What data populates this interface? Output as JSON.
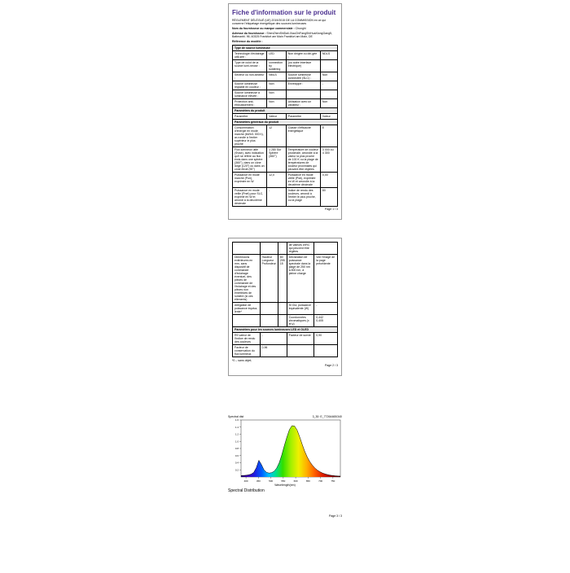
{
  "title": "Fiche d'information sur le produit",
  "subtitle": "RÈGLEMENT DÉLÉGUÉ (UE) 2019/2015 DE LA COMMISSION en ce qui concerne l'étiquetage énergétique des sources lumineuses",
  "supplierLabel": "Nom du fournisseur ou marque commerciale :",
  "supplier": "Chunghi",
  "addressLabel": "Adresse du fournisseur :",
  "address": "ShenZhenShiDali-XiaoChiFangShiHuaXiongGang5, Battmanbl. 96, 60325 Frankfurt am Main Frankfurt am Main, DE",
  "refLabel": "Référence du modèle :",
  "ref": "",
  "sectType": "Type de source lumineuse",
  "rows1": [
    [
      "Technologie d'éclairage utili-sée :",
      "LED",
      "Non dirigée ou diri-gée :",
      "NDLS"
    ],
    [
      "Type de culot de la source lumi-neuse :",
      "connection by soldering",
      "(ou autre interface électrique)",
      ""
    ],
    [
      "Secteur ou non-secteur :",
      "NMLS",
      "Source lumineuse connectée (SLC) :",
      "Non"
    ],
    [
      "Source lumineuse réglable en couleur :",
      "Non",
      "Enveloppe :",
      "-"
    ],
    [
      "Source lumineuse à luminance élevée :",
      "Non",
      "",
      ""
    ],
    [
      "Protection anti-éblouissement :",
      "Non",
      "Utilisation avec un variateur :",
      "Non"
    ]
  ],
  "sectParam": "Paramètres du produit",
  "hdr": [
    "Paramètre",
    "Valeur",
    "Paramètre",
    "Valeur"
  ],
  "sectGen": "Paramètres généraux du produit",
  "rows2": [
    [
      "Consommation d'énergie en mode marche (kWh/1 000 h), ar-rondie à l'entier supérieur le plus proche",
      "12",
      "Classe d'efficacité énergétique",
      "E"
    ],
    [
      "Flux lumineux utile (Φuse), avec indication qu'il se réfère au flux émis dans une sphère (360°), dans un cône large (120°) ou dans un cône étroit (90°)",
      "1 280 Sur Sphère (360°)",
      "Température de couleur proximale, arrondie à la valeur la plus proche de 100 K ou la plage de températures de couleur proximales qui peuvent être réglées",
      "3 000 ou 4 300"
    ],
    [
      "Puissance en mode marche (Pon), exprimée en W",
      "12,0",
      "Puissance en mode veille (Psb), exprimée en W et arrondie à la deuxième décimale",
      "0,00"
    ],
    [
      "Puissance en mode veille (Pnet) pour SLC, exprimé en W et arrondi à la deuxième décimale",
      "-",
      "Indice de rendu des couleurs, arrondi à l'entier le plus proche, ou la plage",
      "80"
    ]
  ],
  "page1foot": "Page 1 / 3",
  "rows3": [
    [
      "",
      "",
      "",
      "de valeurs d'IRC qui peuvent être réglées",
      ""
    ],
    [
      "Dimensions extérieures en mm, sans dispositif de commande d'éclairage éventuel, des pièces de commande de l'éclairage et des pièces non émettrices de lumière (si ces éléments)",
      "Hauteur\nLongueur\nProfondeur",
      "80\n295\n15",
      "Déclaration de puissance spectrale dans la plage de 250 nm à 800 nm, à pleine charge",
      "Voir l'image de la page précédente"
    ],
    [
      "Allégation de puissance équiva-lente*",
      "",
      "",
      "Si Oui, puissance équivalente (W)",
      "-"
    ],
    [
      "",
      "",
      "",
      "Coordonnées chromatiques (x et y)",
      "0,442\n0,405"
    ]
  ],
  "sectLED": "Paramètres pour les sources lumineuses LED et OLED",
  "rows4": [
    [
      "R9 valeur de l'indice de rendu des couleurs",
      "-",
      "Facteur de survie",
      "0,90"
    ],
    [
      "Facteur de conservation du flux lumineux",
      "0,96",
      "",
      ""
    ]
  ],
  "note": "*0 – sans objet;",
  "page2foot": "Page 2 / 3",
  "chart": {
    "topLeft": "Spectral dist",
    "topRight": "3_30: E_77264465/340",
    "yLabel": "",
    "xLabel": "Wavelength(nm)",
    "caption": "Spectral Distribution",
    "width": 140,
    "height": 80,
    "xmin": 380,
    "xmax": 780,
    "ymax": 1.6,
    "yticks": [
      0.2,
      0.4,
      0.6,
      0.8,
      1.0,
      1.2,
      1.4,
      1.6
    ],
    "xticks": [
      400,
      450,
      500,
      550,
      600,
      650,
      700,
      750
    ],
    "series": [
      40,
      42,
      48,
      60,
      80,
      130,
      260,
      470,
      350,
      200,
      130,
      110,
      120,
      160,
      250,
      400,
      620,
      880,
      1120,
      1330,
      1440,
      1430,
      1320,
      1130,
      920,
      720,
      560,
      430,
      330,
      250,
      190,
      145,
      110,
      85,
      65,
      50,
      40,
      32,
      26,
      22
    ],
    "stops": [
      {
        "x": 0.0,
        "c": "#1c006b"
      },
      {
        "x": 0.07,
        "c": "#3a00b5"
      },
      {
        "x": 0.14,
        "c": "#2020e0"
      },
      {
        "x": 0.21,
        "c": "#0060ff"
      },
      {
        "x": 0.28,
        "c": "#00c0ff"
      },
      {
        "x": 0.35,
        "c": "#00e090"
      },
      {
        "x": 0.42,
        "c": "#30e000"
      },
      {
        "x": 0.5,
        "c": "#a0f000"
      },
      {
        "x": 0.58,
        "c": "#f0f000"
      },
      {
        "x": 0.66,
        "c": "#ffb000"
      },
      {
        "x": 0.74,
        "c": "#ff6000"
      },
      {
        "x": 0.82,
        "c": "#e02000"
      },
      {
        "x": 0.9,
        "c": "#a00000"
      },
      {
        "x": 1.0,
        "c": "#400000"
      }
    ]
  },
  "page3foot": "Page 3 / 3"
}
